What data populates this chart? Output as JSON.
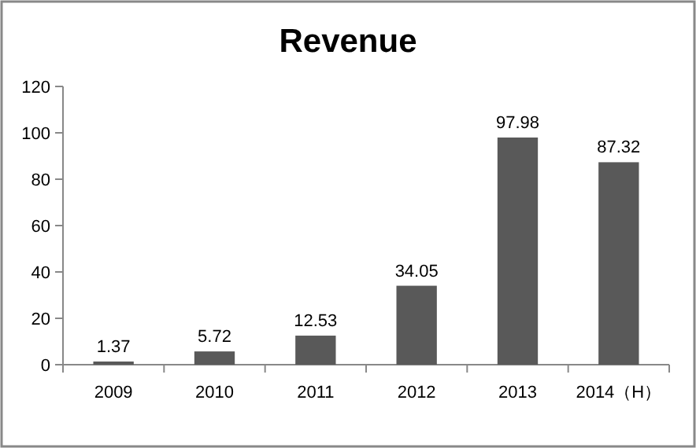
{
  "chart_data": {
    "type": "bar",
    "title": "Revenue",
    "categories": [
      "2009",
      "2010",
      "2011",
      "2012",
      "2013",
      "2014（H）"
    ],
    "values": [
      1.37,
      5.72,
      12.53,
      34.05,
      97.98,
      87.32
    ],
    "color": "#595959",
    "ylim": [
      0,
      120
    ],
    "yticks": [
      0,
      20,
      40,
      60,
      80,
      100,
      120
    ],
    "grid": false,
    "data_labels": true
  }
}
